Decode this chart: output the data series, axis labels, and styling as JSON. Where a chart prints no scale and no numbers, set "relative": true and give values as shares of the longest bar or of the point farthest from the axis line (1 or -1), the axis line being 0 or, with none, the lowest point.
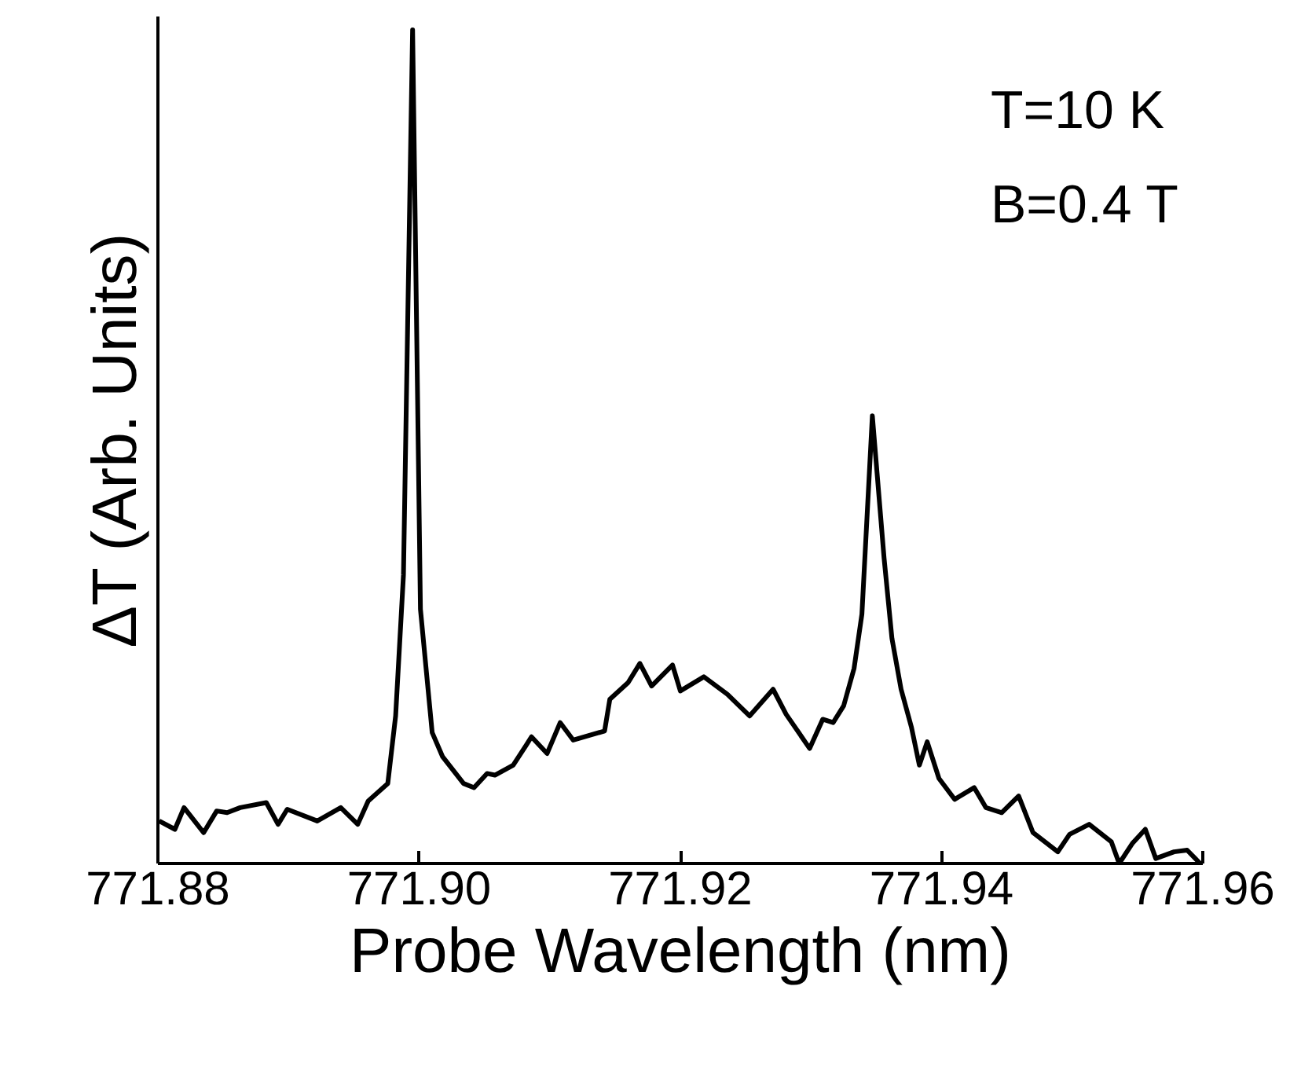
{
  "chart_data": {
    "type": "line",
    "relative": true,
    "xlabel": "Probe Wavelength (nm)",
    "ylabel": "ΔT (Arb. Units)",
    "annotations": [
      "T=10 K",
      "B=0.4 T"
    ],
    "xlim": [
      771.88,
      771.96
    ],
    "xticks": [
      771.88,
      {
        "value": 771.9,
        "label": "771.90"
      },
      771.92,
      771.94,
      771.96
    ],
    "line_style": "solid",
    "series": [
      {
        "color": "#000000",
        "x": [
          771.8801,
          771.8813,
          771.882,
          771.8835,
          771.8845,
          771.8853,
          771.8863,
          771.8883,
          771.8892,
          771.8899,
          771.8922,
          771.894,
          771.8953,
          771.8961,
          771.8976,
          771.8982,
          771.8988,
          771.8995,
          771.9001,
          771.901,
          771.9018,
          771.9034,
          771.9042,
          771.9052,
          771.9058,
          771.9072,
          771.9082,
          771.9086,
          771.9098,
          771.9108,
          771.9118,
          771.9142,
          771.9146,
          771.916,
          771.9169,
          771.9178,
          771.9194,
          771.92,
          771.9218,
          771.9236,
          771.9253,
          771.9271,
          771.9281,
          771.9299,
          771.9309,
          771.9317,
          771.9325,
          771.9333,
          771.9339,
          771.9347,
          771.9356,
          771.9362,
          771.9369,
          771.9377,
          771.9383,
          771.9389,
          771.9398,
          771.941,
          771.9425,
          771.9434,
          771.9446,
          771.9459,
          771.947,
          771.9489,
          771.9498,
          771.9513,
          771.953,
          771.9536,
          771.9546,
          771.9556,
          771.9564,
          771.9578,
          771.9588,
          771.9598
        ],
        "values": [
          0.051,
          0.041,
          0.067,
          0.037,
          0.063,
          0.061,
          0.067,
          0.073,
          0.047,
          0.065,
          0.051,
          0.067,
          0.047,
          0.075,
          0.096,
          0.177,
          0.346,
          1.0,
          0.305,
          0.157,
          0.128,
          0.096,
          0.091,
          0.108,
          0.106,
          0.118,
          0.142,
          0.152,
          0.132,
          0.169,
          0.148,
          0.159,
          0.197,
          0.217,
          0.24,
          0.213,
          0.238,
          0.207,
          0.224,
          0.203,
          0.177,
          0.209,
          0.179,
          0.138,
          0.173,
          0.169,
          0.189,
          0.234,
          0.299,
          0.537,
          0.366,
          0.27,
          0.209,
          0.163,
          0.118,
          0.146,
          0.102,
          0.077,
          0.091,
          0.067,
          0.061,
          0.081,
          0.037,
          0.014,
          0.035,
          0.047,
          0.026,
          0.0,
          0.024,
          0.041,
          0.006,
          0.014,
          0.016,
          0.0
        ]
      }
    ]
  }
}
